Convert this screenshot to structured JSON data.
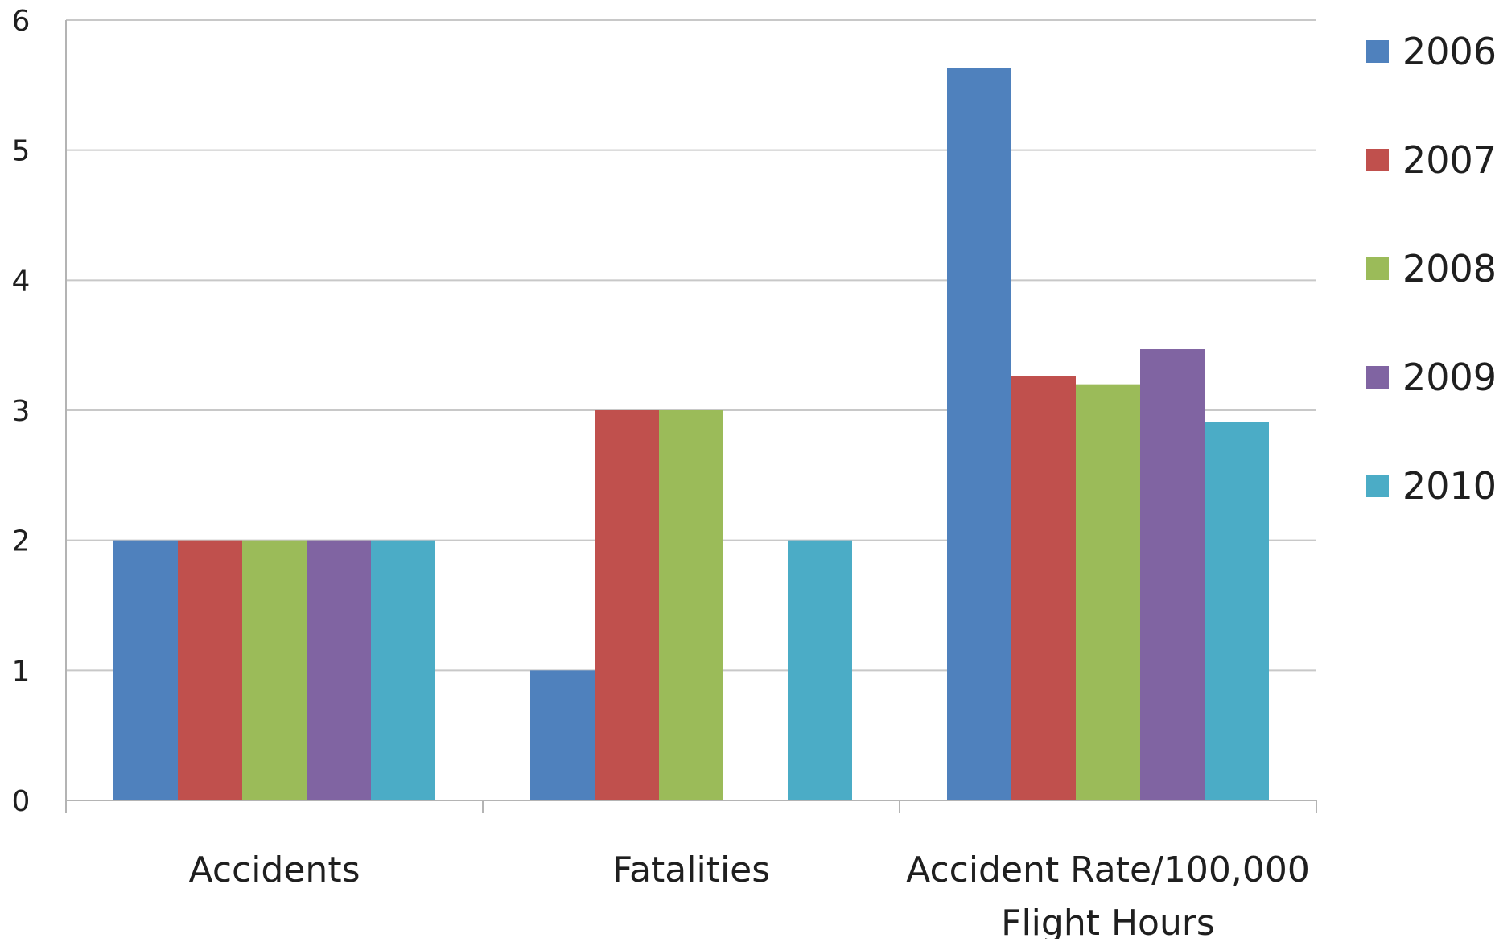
{
  "chart_data": {
    "type": "bar",
    "categories": [
      [
        "Accidents"
      ],
      [
        "Fatalities"
      ],
      [
        "Accident Rate/100,000",
        "Flight Hours"
      ]
    ],
    "series": [
      {
        "name": "2006",
        "color": "#4f81bd",
        "values": [
          2,
          1,
          5.63
        ]
      },
      {
        "name": "2007",
        "color": "#c0504d",
        "values": [
          2,
          3,
          3.26
        ]
      },
      {
        "name": "2008",
        "color": "#9bbb59",
        "values": [
          2,
          3,
          3.2
        ]
      },
      {
        "name": "2009",
        "color": "#8064a2",
        "values": [
          2,
          0,
          3.47
        ]
      },
      {
        "name": "2010",
        "color": "#4bacc6",
        "values": [
          2,
          2,
          2.91
        ]
      }
    ],
    "ylim": [
      0,
      6
    ],
    "yticks": [
      0,
      1,
      2,
      3,
      4,
      5,
      6
    ],
    "grid": true,
    "legend_position": "right"
  }
}
